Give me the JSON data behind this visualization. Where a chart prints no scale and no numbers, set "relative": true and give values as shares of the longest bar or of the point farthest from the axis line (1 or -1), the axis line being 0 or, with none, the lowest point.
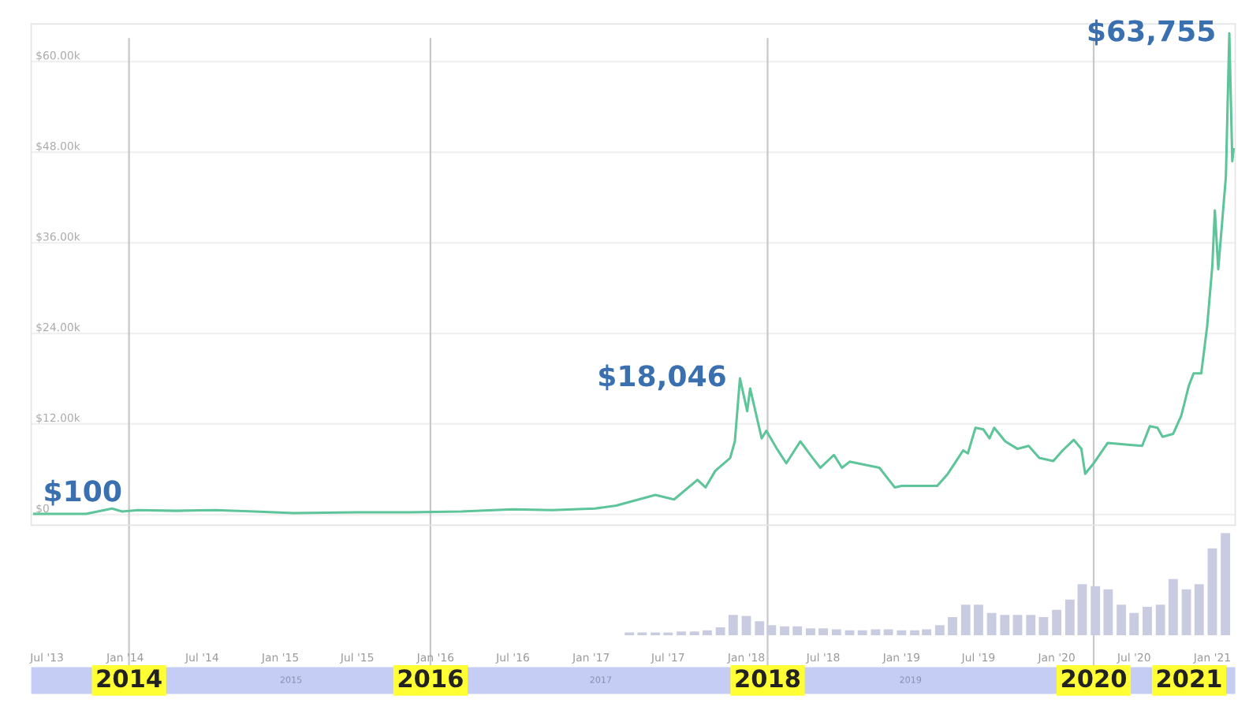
{
  "chart_data": [
    {
      "type": "line",
      "x": [
        "2013-06-01",
        "2013-10-01",
        "2013-12-01",
        "2013-12-25",
        "2014-02-01",
        "2014-05-01",
        "2014-08-01",
        "2014-11-01",
        "2015-02-01",
        "2015-07-01",
        "2015-11-01",
        "2016-03-01",
        "2016-07-01",
        "2016-10-01",
        "2017-01-10",
        "2017-03-01",
        "2017-06-01",
        "2017-07-15",
        "2017-09-08",
        "2017-09-27",
        "2017-10-20",
        "2017-11-24",
        "2017-12-05",
        "2017-12-17",
        "2018-01-03",
        "2018-01-10",
        "2018-02-06",
        "2018-02-17",
        "2018-03-14",
        "2018-04-05",
        "2018-05-08",
        "2018-06-06",
        "2018-06-24",
        "2018-07-26",
        "2018-08-14",
        "2018-09-01",
        "2018-11-10",
        "2018-12-16",
        "2019-01-01",
        "2019-03-26",
        "2019-04-20",
        "2019-05-26",
        "2019-06-06",
        "2019-06-24",
        "2019-07-12",
        "2019-07-27",
        "2019-08-07",
        "2019-09-02",
        "2019-10-01",
        "2019-10-27",
        "2019-11-21",
        "2019-12-24",
        "2020-01-15",
        "2020-02-10",
        "2020-02-28",
        "2020-03-08",
        "2020-03-28",
        "2020-04-30",
        "2020-06-05",
        "2020-07-20",
        "2020-08-07",
        "2020-08-25",
        "2020-09-06",
        "2020-10-01",
        "2020-10-20",
        "2020-11-07",
        "2020-11-18",
        "2020-12-06",
        "2020-12-20",
        "2021-01-01",
        "2021-01-07",
        "2021-01-15",
        "2021-02-02",
        "2021-02-10",
        "2021-02-17",
        "2021-02-20"
      ],
      "series": [
        {
          "color": "#5ec49a",
          "values": [
            100,
            100,
            800,
            400,
            600,
            500,
            600,
            400,
            200,
            300,
            300,
            400,
            700,
            600,
            800,
            1200,
            2600,
            2000,
            4600,
            3600,
            5800,
            7500,
            9700,
            18046,
            13700,
            16700,
            10100,
            11100,
            8700,
            6800,
            9700,
            7500,
            6200,
            7900,
            6200,
            7000,
            6200,
            3600,
            3800,
            3800,
            5400,
            8500,
            8100,
            11500,
            11300,
            10100,
            11500,
            9700,
            8700,
            9100,
            7500,
            7100,
            8500,
            9900,
            8700,
            5400,
            6800,
            9500,
            9300,
            9100,
            11700,
            11500,
            10300,
            10700,
            13100,
            17100,
            18700,
            18700,
            25000,
            32900,
            40300,
            32500,
            44800,
            63755,
            46800,
            48400
          ]
        }
      ],
      "xlim": [
        "2013-05-25",
        "2021-02-24"
      ],
      "ylim": [
        -1400,
        65000
      ],
      "yticks": [
        {
          "value": 0,
          "label": "$0"
        },
        {
          "value": 12000,
          "label": "$12.00k"
        },
        {
          "value": 24000,
          "label": "$24.00k"
        },
        {
          "value": 36000,
          "label": "$36.00k"
        },
        {
          "value": 48000,
          "label": "$48.00k"
        },
        {
          "value": 60000,
          "label": "$60.00k"
        }
      ],
      "tick_labels": "y",
      "grid": "y",
      "ref_lines": [
        {
          "axis": "x",
          "value": "2014-01-10",
          "label": "2014",
          "color": "#c8c8c8"
        },
        {
          "axis": "x",
          "value": "2015-12-20",
          "label": "2016",
          "color": "#c8c8c8"
        },
        {
          "axis": "x",
          "value": "2018-02-20",
          "label": "2018",
          "color": "#c8c8c8"
        },
        {
          "axis": "x",
          "value": "2020-03-28",
          "label": "2020",
          "color": "#c8c8c8"
        }
      ],
      "annotations": [
        {
          "text": "$100",
          "x": "2013-06-01",
          "y": 100
        },
        {
          "text": "$18,046",
          "x": "2017-12-17",
          "y": 18046
        },
        {
          "text": "$63,755",
          "x": "2021-02-10",
          "y": 63755
        }
      ]
    },
    {
      "type": "bar",
      "relative": true,
      "color": "#c9cce0",
      "x": [
        "2017-04",
        "2017-05",
        "2017-06",
        "2017-07",
        "2017-08",
        "2017-09",
        "2017-10",
        "2017-11",
        "2017-12",
        "2018-01",
        "2018-02",
        "2018-03",
        "2018-04",
        "2018-05",
        "2018-06",
        "2018-07",
        "2018-08",
        "2018-09",
        "2018-10",
        "2018-11",
        "2018-12",
        "2019-01",
        "2019-02",
        "2019-03",
        "2019-04",
        "2019-05",
        "2019-06",
        "2019-07",
        "2019-08",
        "2019-09",
        "2019-10",
        "2019-11",
        "2019-12",
        "2020-01",
        "2020-02",
        "2020-03",
        "2020-04",
        "2020-05",
        "2020-06",
        "2020-07",
        "2020-08",
        "2020-09",
        "2020-10",
        "2020-11",
        "2020-12",
        "2021-01",
        "2021-02"
      ],
      "values": [
        0.03,
        0.03,
        0.03,
        0.03,
        0.04,
        0.04,
        0.05,
        0.08,
        0.2,
        0.19,
        0.14,
        0.1,
        0.09,
        0.09,
        0.07,
        0.07,
        0.06,
        0.05,
        0.05,
        0.06,
        0.06,
        0.05,
        0.05,
        0.06,
        0.1,
        0.18,
        0.3,
        0.3,
        0.22,
        0.2,
        0.2,
        0.2,
        0.18,
        0.25,
        0.35,
        0.5,
        0.48,
        0.45,
        0.3,
        0.22,
        0.28,
        0.3,
        0.55,
        0.45,
        0.5,
        0.85,
        1.0
      ],
      "xlim": [
        "2013-05-25",
        "2021-02-24"
      ],
      "xticks": [
        {
          "value": "2013-07-01",
          "label": "Jul '13"
        },
        {
          "value": "2014-01-01",
          "label": "Jan '14"
        },
        {
          "value": "2014-07-01",
          "label": "Jul '14"
        },
        {
          "value": "2015-01-01",
          "label": "Jan '15"
        },
        {
          "value": "2015-07-01",
          "label": "Jul '15"
        },
        {
          "value": "2016-01-01",
          "label": "Jan '16"
        },
        {
          "value": "2016-07-01",
          "label": "Jul '16"
        },
        {
          "value": "2017-01-01",
          "label": "Jan '17"
        },
        {
          "value": "2017-07-01",
          "label": "Jul '17"
        },
        {
          "value": "2018-01-01",
          "label": "Jan '18"
        },
        {
          "value": "2018-07-01",
          "label": "Jul '18"
        },
        {
          "value": "2019-01-01",
          "label": "Jan '19"
        },
        {
          "value": "2019-07-01",
          "label": "Jul '19"
        },
        {
          "value": "2020-01-01",
          "label": "Jan '20"
        },
        {
          "value": "2020-07-01",
          "label": "Jul '20"
        },
        {
          "value": "2021-01-01",
          "label": "Jan '21"
        }
      ],
      "tick_labels": "x",
      "annotations": [
        "2015",
        "2017",
        "2019",
        "2021"
      ]
    }
  ]
}
